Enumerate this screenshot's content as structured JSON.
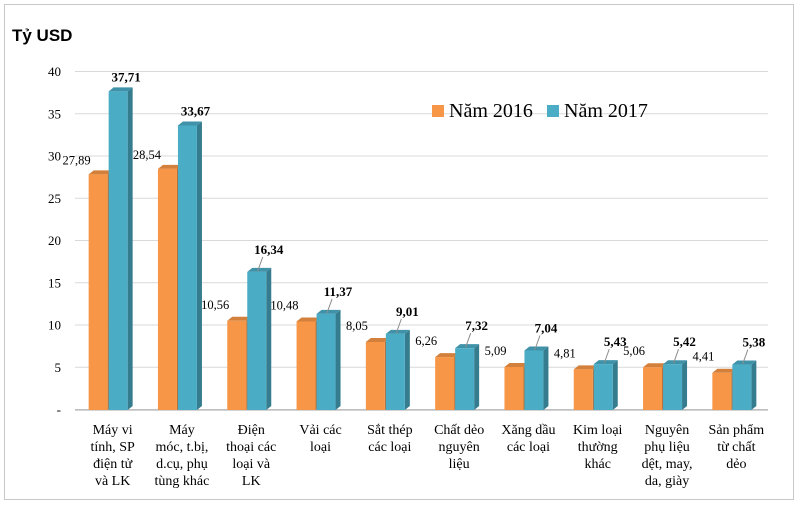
{
  "chart_data": {
    "type": "bar",
    "ylabel": "Tỷ USD",
    "ylim": [
      0,
      40
    ],
    "yticks": [
      "-",
      "5",
      "10",
      "15",
      "20",
      "25",
      "30",
      "35",
      "40"
    ],
    "grid": true,
    "legend_position": "top-right",
    "categories": [
      [
        "Máy vi",
        "tính, SP",
        "điện tử",
        "và LK"
      ],
      [
        "Máy",
        "móc, t.bị,",
        "d.cụ, phụ",
        "tùng khác"
      ],
      [
        "Điện",
        "thoại các",
        "loại và",
        "LK"
      ],
      [
        "Vải các",
        "loại"
      ],
      [
        "Sắt thép",
        "các loại"
      ],
      [
        "Chất dẻo",
        "nguyên",
        "liệu"
      ],
      [
        "Xăng dầu",
        "các loại"
      ],
      [
        "Kim loại",
        "thường",
        "khác"
      ],
      [
        "Nguyên",
        "phụ liệu",
        "dệt, may,",
        "da, giày"
      ],
      [
        "Sản phẩm",
        "từ chất",
        "dẻo"
      ]
    ],
    "series": [
      {
        "name": "Năm 2016",
        "color": "#f79646",
        "values": [
          27.89,
          28.54,
          10.56,
          10.48,
          8.05,
          6.26,
          5.09,
          4.81,
          5.06,
          4.41
        ],
        "labels": [
          "27,89",
          "28,54",
          "10,56",
          "10,48",
          "8,05",
          "6,26",
          "5,09",
          "4,81",
          "5,06",
          "4,41"
        ]
      },
      {
        "name": "Năm 2017",
        "color": "#4bacc6",
        "values": [
          37.71,
          33.67,
          16.34,
          11.37,
          9.01,
          7.32,
          7.04,
          5.43,
          5.42,
          5.38
        ],
        "labels": [
          "37,71",
          "33,67",
          "16,34",
          "11,37",
          "9,01",
          "7,32",
          "7,04",
          "5,43",
          "5,42",
          "5,38"
        ]
      }
    ]
  }
}
